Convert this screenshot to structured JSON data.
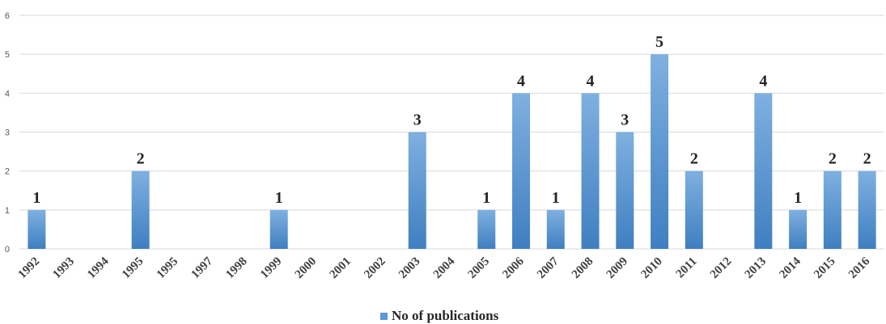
{
  "chart_data": {
    "type": "bar",
    "categories": [
      "1992",
      "1993",
      "1994",
      "1995",
      "1995",
      "1997",
      "1998",
      "1999",
      "2000",
      "2001",
      "2002",
      "2003",
      "2004",
      "2005",
      "2006",
      "2007",
      "2008",
      "2009",
      "2010",
      "2011",
      "2012",
      "2013",
      "2014",
      "2015",
      "2016"
    ],
    "series": [
      {
        "name": "No of publications",
        "values": [
          1,
          0,
          0,
          2,
          0,
          0,
          0,
          1,
          0,
          0,
          0,
          3,
          0,
          1,
          4,
          1,
          4,
          3,
          5,
          2,
          0,
          4,
          1,
          2,
          2
        ],
        "data_labels": [
          "1",
          "",
          "",
          "2",
          "",
          "",
          "",
          "1",
          "",
          "",
          "",
          "3",
          "",
          "1",
          "4",
          "1",
          "4",
          "3",
          "5",
          "2",
          "",
          "4",
          "1",
          "2",
          "2"
        ]
      }
    ],
    "ylim": [
      0,
      6
    ],
    "yticks": [
      "0",
      "1",
      "2",
      "3",
      "4",
      "5",
      "6"
    ],
    "grid": true,
    "legend": "bottom-center",
    "colors": {
      "bar": "#5b9bd5",
      "bar_light": "#7fb0e0",
      "bar_dark": "#3f7fc1",
      "grid": "#d9d9d9"
    }
  }
}
